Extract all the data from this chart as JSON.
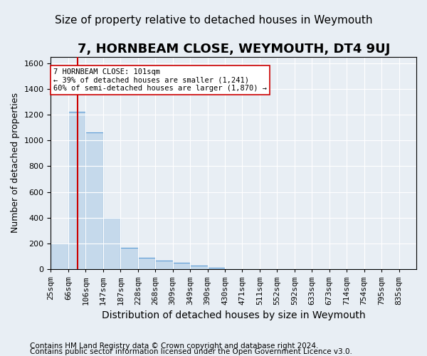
{
  "title": "7, HORNBEAM CLOSE, WEYMOUTH, DT4 9UJ",
  "subtitle": "Size of property relative to detached houses in Weymouth",
  "xlabel": "Distribution of detached houses by size in Weymouth",
  "ylabel": "Number of detached properties",
  "footer_line1": "Contains HM Land Registry data © Crown copyright and database right 2024.",
  "footer_line2": "Contains public sector information licensed under the Open Government Licence v3.0.",
  "bin_labels": [
    "25sqm",
    "66sqm",
    "106sqm",
    "147sqm",
    "187sqm",
    "228sqm",
    "268sqm",
    "309sqm",
    "349sqm",
    "390sqm",
    "430sqm",
    "471sqm",
    "511sqm",
    "552sqm",
    "592sqm",
    "633sqm",
    "673sqm",
    "714sqm",
    "754sqm",
    "795sqm",
    "835sqm"
  ],
  "bar_heights": [
    200,
    1220,
    1060,
    400,
    165,
    90,
    65,
    50,
    30,
    10,
    0,
    0,
    0,
    0,
    0,
    0,
    0,
    0,
    0,
    0,
    0
  ],
  "bar_color": "#c5d9eb",
  "bar_edge_color": "#5b9bd5",
  "property_line_x": 1.54,
  "property_line_color": "#cc0000",
  "annotation_text": "7 HORNBEAM CLOSE: 101sqm\n← 39% of detached houses are smaller (1,241)\n60% of semi-detached houses are larger (1,870) →",
  "annotation_box_color": "#ffffff",
  "annotation_box_edge": "#cc0000",
  "ylim": [
    0,
    1650
  ],
  "yticks": [
    0,
    200,
    400,
    600,
    800,
    1000,
    1200,
    1400,
    1600
  ],
  "background_color": "#e8eef4",
  "plot_background": "#e8eef4",
  "title_fontsize": 13,
  "subtitle_fontsize": 11,
  "xlabel_fontsize": 10,
  "ylabel_fontsize": 9,
  "tick_fontsize": 8,
  "footer_fontsize": 7.5
}
